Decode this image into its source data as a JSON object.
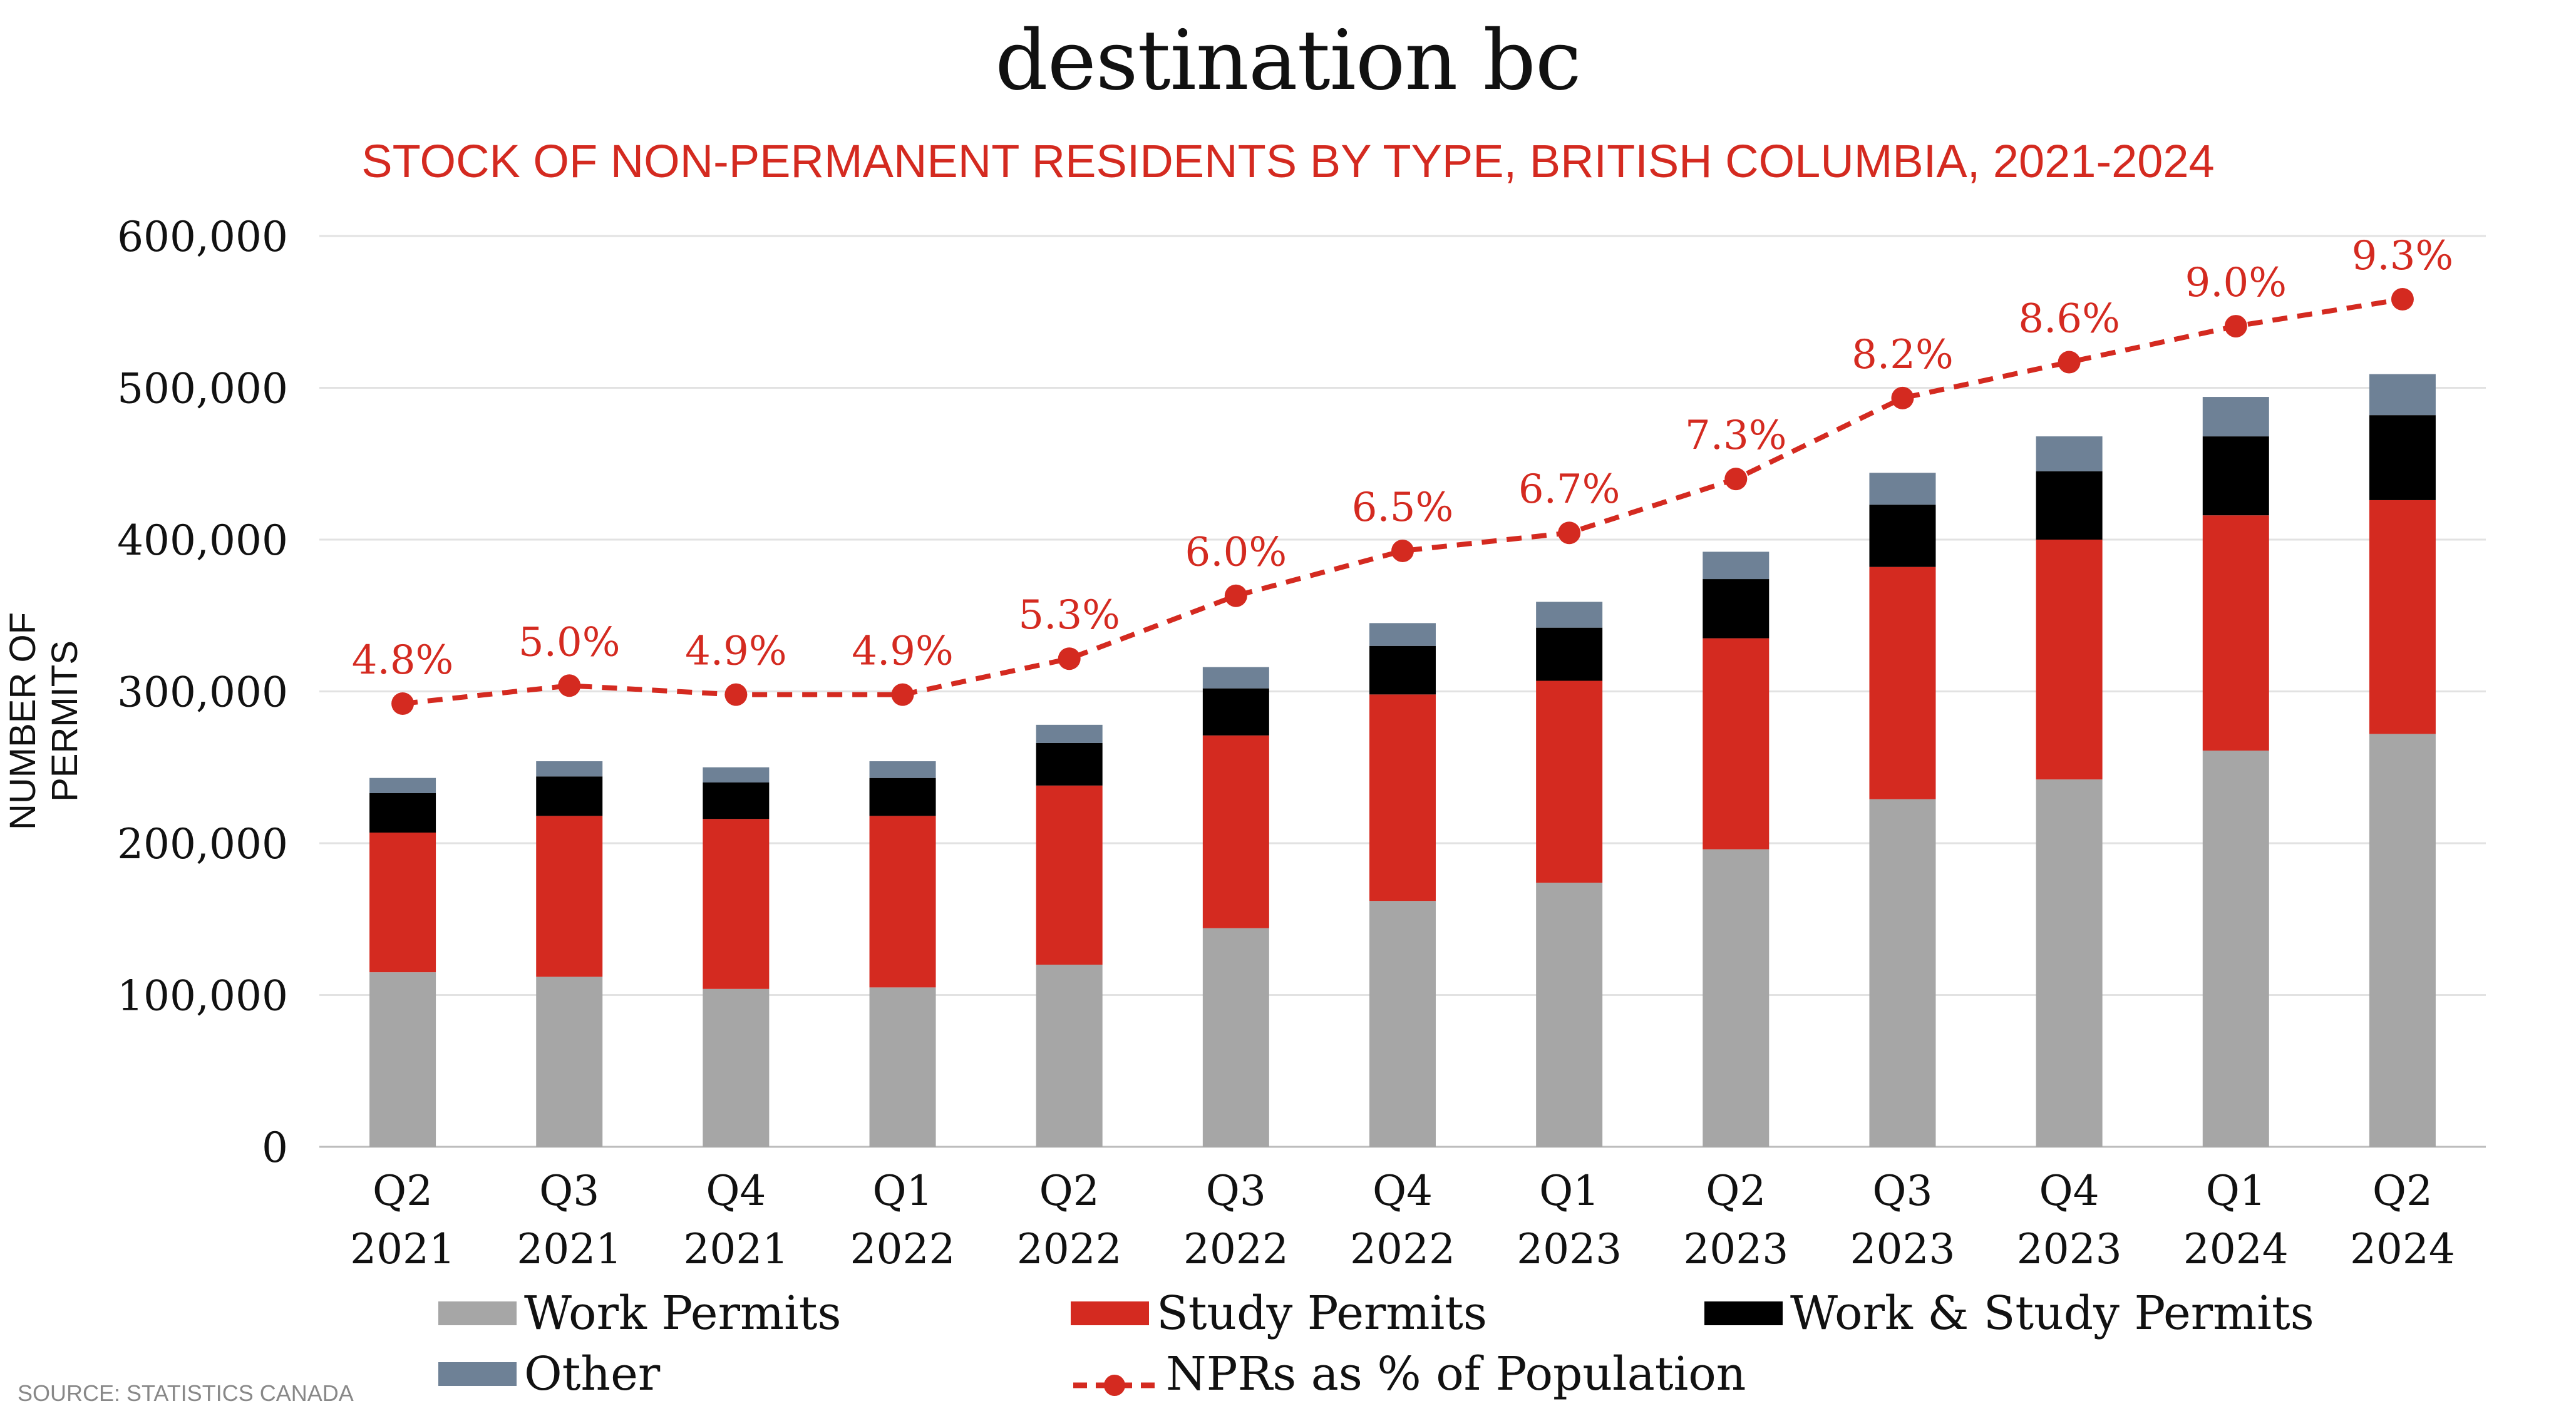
{
  "title": "destination bc",
  "subtitle": "STOCK OF NON-PERMANENT RESIDENTS BY TYPE, BRITISH COLUMBIA, 2021-2024",
  "source": "SOURCE: STATISTICS CANADA",
  "colors": {
    "work": "#a6a6a6",
    "study": "#d42a20",
    "workstudy": "#000000",
    "other": "#6e8196",
    "line": "#d42a20",
    "grid": "#e2e2e2"
  },
  "chart_data": {
    "type": "bar",
    "stacked": true,
    "ylabel": "NUMBER OF PERMITS",
    "xlabel": "",
    "ylim": [
      0,
      600000
    ],
    "yticks": [
      {
        "value": 0,
        "label": "0"
      },
      {
        "value": 100000,
        "label": "100,000"
      },
      {
        "value": 200000,
        "label": "200,000"
      },
      {
        "value": 300000,
        "label": "300,000"
      },
      {
        "value": 400000,
        "label": "400,000"
      },
      {
        "value": 500000,
        "label": "500,000"
      },
      {
        "value": 600000,
        "label": "600,000"
      }
    ],
    "grid": true,
    "legend_position": "bottom",
    "categories": [
      [
        "Q2",
        "2021"
      ],
      [
        "Q3",
        "2021"
      ],
      [
        "Q4",
        "2021"
      ],
      [
        "Q1",
        "2022"
      ],
      [
        "Q2",
        "2022"
      ],
      [
        "Q3",
        "2022"
      ],
      [
        "Q4",
        "2022"
      ],
      [
        "Q1",
        "2023"
      ],
      [
        "Q2",
        "2023"
      ],
      [
        "Q3",
        "2023"
      ],
      [
        "Q4",
        "2023"
      ],
      [
        "Q1",
        "2024"
      ],
      [
        "Q2",
        "2024"
      ]
    ],
    "series": [
      {
        "name": "Work Permits",
        "key": "work",
        "values": [
          115000,
          112000,
          104000,
          105000,
          120000,
          144000,
          162000,
          174000,
          196000,
          229000,
          242000,
          261000,
          272000
        ]
      },
      {
        "name": "Study Permits",
        "key": "study",
        "values": [
          92000,
          106000,
          112000,
          113000,
          118000,
          127000,
          136000,
          133000,
          139000,
          153000,
          158000,
          155000,
          154000
        ]
      },
      {
        "name": "Work & Study Permits",
        "key": "workstudy",
        "values": [
          26000,
          26000,
          24000,
          25000,
          28000,
          31000,
          32000,
          35000,
          39000,
          41000,
          45000,
          52000,
          56000
        ]
      },
      {
        "name": "Other",
        "key": "other",
        "values": [
          10000,
          10000,
          10000,
          11000,
          12000,
          14000,
          15000,
          17000,
          18000,
          21000,
          23000,
          26000,
          27000
        ]
      }
    ],
    "line_series": {
      "name": "NPRs as % of Population",
      "values": [
        4.8,
        5.0,
        4.9,
        4.9,
        5.3,
        6.0,
        6.5,
        6.7,
        7.3,
        8.2,
        8.6,
        9.0,
        9.3
      ],
      "labels": [
        "4.8%",
        "5.0%",
        "4.9%",
        "4.9%",
        "5.3%",
        "6.0%",
        "6.5%",
        "6.7%",
        "7.3%",
        "8.2%",
        "8.6%",
        "9.0%",
        "9.3%"
      ]
    }
  }
}
